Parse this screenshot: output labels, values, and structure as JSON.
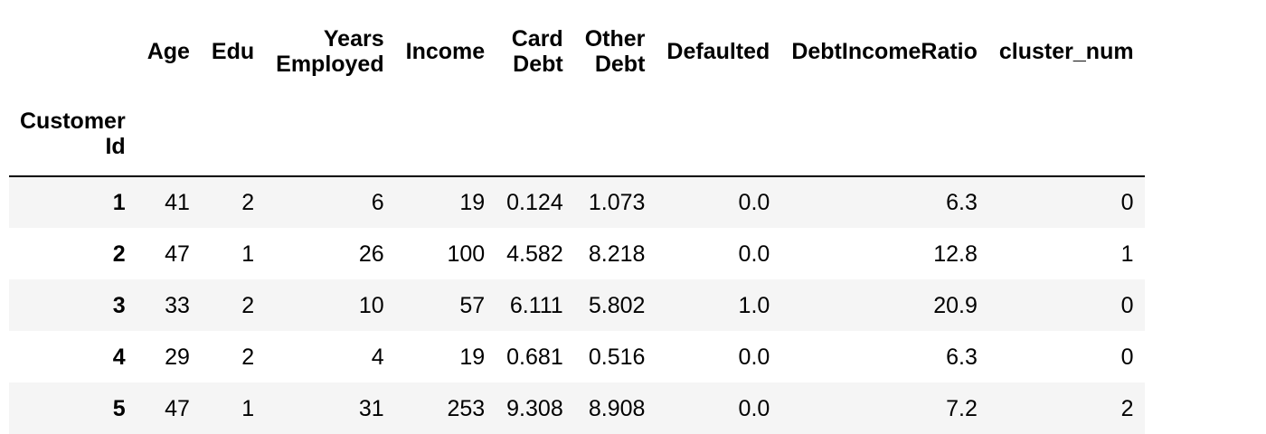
{
  "table": {
    "columns": [
      {
        "key": "age",
        "lines": [
          "Age"
        ]
      },
      {
        "key": "edu",
        "lines": [
          "Edu"
        ]
      },
      {
        "key": "years_employed",
        "lines": [
          "Years",
          "Employed"
        ]
      },
      {
        "key": "income",
        "lines": [
          "Income"
        ]
      },
      {
        "key": "card_debt",
        "lines": [
          "Card",
          "Debt"
        ]
      },
      {
        "key": "other_debt",
        "lines": [
          "Other",
          "Debt"
        ]
      },
      {
        "key": "defaulted",
        "lines": [
          "Defaulted"
        ]
      },
      {
        "key": "debt_income_ratio",
        "lines": [
          "DebtIncomeRatio"
        ]
      },
      {
        "key": "cluster_num",
        "lines": [
          "cluster_num"
        ]
      }
    ],
    "index_name": [
      "Customer",
      "Id"
    ],
    "rows": [
      {
        "index": "1",
        "cells": [
          "41",
          "2",
          "6",
          "19",
          "0.124",
          "1.073",
          "0.0",
          "6.3",
          "0"
        ]
      },
      {
        "index": "2",
        "cells": [
          "47",
          "1",
          "26",
          "100",
          "4.582",
          "8.218",
          "0.0",
          "12.8",
          "1"
        ]
      },
      {
        "index": "3",
        "cells": [
          "33",
          "2",
          "10",
          "57",
          "6.111",
          "5.802",
          "1.0",
          "20.9",
          "0"
        ]
      },
      {
        "index": "4",
        "cells": [
          "29",
          "2",
          "4",
          "19",
          "0.681",
          "0.516",
          "0.0",
          "6.3",
          "0"
        ]
      },
      {
        "index": "5",
        "cells": [
          "47",
          "1",
          "31",
          "253",
          "9.308",
          "8.908",
          "0.0",
          "7.2",
          "2"
        ]
      }
    ]
  }
}
